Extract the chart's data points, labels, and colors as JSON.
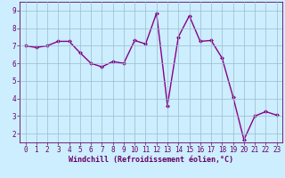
{
  "x": [
    0,
    1,
    2,
    3,
    4,
    5,
    6,
    7,
    8,
    9,
    10,
    11,
    12,
    13,
    14,
    15,
    16,
    17,
    18,
    19,
    20,
    21,
    22,
    23
  ],
  "y": [
    7.0,
    6.9,
    7.0,
    7.25,
    7.25,
    6.6,
    6.0,
    5.8,
    6.1,
    6.0,
    7.3,
    7.1,
    8.85,
    3.6,
    7.5,
    8.7,
    7.25,
    7.3,
    6.3,
    4.1,
    1.65,
    3.0,
    3.25,
    3.05
  ],
  "line_color": "#880088",
  "marker": "D",
  "marker_size": 2.0,
  "bg_color": "#cceeff",
  "grid_color": "#99bbcc",
  "xlabel": "Windchill (Refroidissement éolien,°C)",
  "ylim": [
    1.5,
    9.5
  ],
  "xlim": [
    -0.5,
    23.5
  ],
  "yticks": [
    2,
    3,
    4,
    5,
    6,
    7,
    8,
    9
  ],
  "xticks": [
    0,
    1,
    2,
    3,
    4,
    5,
    6,
    7,
    8,
    9,
    10,
    11,
    12,
    13,
    14,
    15,
    16,
    17,
    18,
    19,
    20,
    21,
    22,
    23
  ],
  "tick_label_color": "#660066",
  "xlabel_color": "#660066",
  "spine_color": "#660066",
  "tick_color": "#660066",
  "font_size": 5.5,
  "xlabel_fontsize": 6.0,
  "linewidth": 1.0
}
